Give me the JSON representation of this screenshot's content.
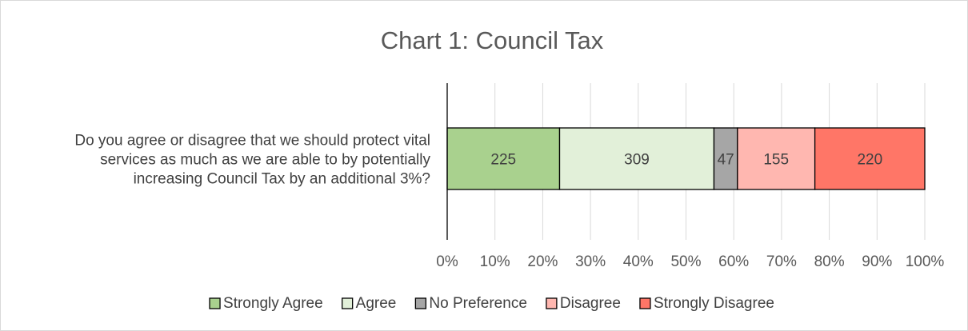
{
  "chart_data": {
    "type": "bar",
    "orientation": "horizontal",
    "stacking": "percent",
    "title": "Chart 1: Council Tax",
    "categories": [
      "Do you agree or disagree that we should protect vital services as much as we are able to by potentially increasing Council Tax by an additional 3%?"
    ],
    "category_lines": [
      "Do you agree or disagree that we should protect vital",
      "services as much as we are able to by potentially",
      "increasing Council Tax by an additional 3%?"
    ],
    "series": [
      {
        "name": "Strongly Agree",
        "values": [
          225
        ],
        "color": "#a9d18e"
      },
      {
        "name": "Agree",
        "values": [
          309
        ],
        "color": "#e2f0d9"
      },
      {
        "name": "No Preference",
        "values": [
          47
        ],
        "color": "#a6a6a6"
      },
      {
        "name": "Disagree",
        "values": [
          155
        ],
        "color": "#ffb7b0"
      },
      {
        "name": "Strongly Disagree",
        "values": [
          220
        ],
        "color": "#ff7667"
      }
    ],
    "xlim": [
      0,
      100
    ],
    "x_ticks": [
      "0%",
      "10%",
      "20%",
      "30%",
      "40%",
      "50%",
      "60%",
      "70%",
      "80%",
      "90%",
      "100%"
    ],
    "grid": true,
    "data_labels": true,
    "legend_position": "bottom"
  }
}
